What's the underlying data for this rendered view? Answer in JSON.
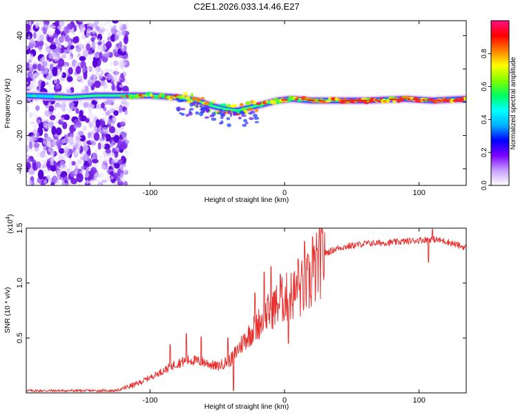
{
  "title": "C2E1.2026.033.14.46.E27",
  "colors": {
    "snr_line": "#e8302e",
    "frame": "#000000",
    "background": "#ffffff",
    "scatter_violet": "#7b2bea",
    "ridge_core": "#ff1f1f"
  },
  "chart_data": [
    {
      "type": "heatmap",
      "name": "spectrogram",
      "xlabel": "Height of straight line (km)",
      "ylabel": "Frequency (Hz)",
      "xlim": [
        -192,
        135
      ],
      "ylim": [
        -50,
        49
      ],
      "x_ticks": [
        {
          "v": -100,
          "label": "-100"
        },
        {
          "v": 0,
          "label": "0"
        },
        {
          "v": 100,
          "label": "100"
        }
      ],
      "y_ticks": [
        {
          "v": 40,
          "label": "40"
        },
        {
          "v": 20,
          "label": "20"
        },
        {
          "v": 0,
          "label": "0"
        },
        {
          "v": -20,
          "label": "-20"
        },
        {
          "v": -40,
          "label": "-40"
        }
      ],
      "noise_region_x": [
        -192,
        -117
      ],
      "ridge": [
        {
          "x": -192,
          "f": 4
        },
        {
          "x": -160,
          "f": 3
        },
        {
          "x": -140,
          "f": 4
        },
        {
          "x": -120,
          "f": 4
        },
        {
          "x": -100,
          "f": 4
        },
        {
          "x": -80,
          "f": 3
        },
        {
          "x": -65,
          "f": 1
        },
        {
          "x": -55,
          "f": -2
        },
        {
          "x": -45,
          "f": -4
        },
        {
          "x": -35,
          "f": -5
        },
        {
          "x": -25,
          "f": -3
        },
        {
          "x": -15,
          "f": -1
        },
        {
          "x": -5,
          "f": 1
        },
        {
          "x": 5,
          "f": 2
        },
        {
          "x": 20,
          "f": 1
        },
        {
          "x": 40,
          "f": 1
        },
        {
          "x": 60,
          "f": 1
        },
        {
          "x": 90,
          "f": 2
        },
        {
          "x": 110,
          "f": 1
        },
        {
          "x": 135,
          "f": 2
        }
      ],
      "colorbar": {
        "label": "Normalized spectral amplitude",
        "range": [
          0,
          1
        ],
        "ticks": [
          {
            "v": 0.0,
            "label": "0.0"
          },
          {
            "v": 0.2,
            "label": "0.2"
          },
          {
            "v": 0.4,
            "label": "0.4"
          },
          {
            "v": 0.6,
            "label": "0.6"
          },
          {
            "v": 0.8,
            "label": "0.8"
          }
        ],
        "stops": [
          "#ffffff",
          "#c8a0ff",
          "#7a00ff",
          "#0000ff",
          "#00b0ff",
          "#00ffff",
          "#00ff60",
          "#80ff00",
          "#ffff00",
          "#ff8000",
          "#ff0000",
          "#ff1080"
        ]
      }
    },
    {
      "type": "line",
      "name": "snr",
      "xlabel": "Height of straight line (km)",
      "ylabel": "SNR (10 * v/v)",
      "multiplier_label": "(x10",
      "multiplier_exp": "4",
      "multiplier_close": ")",
      "xlim": [
        -192,
        135
      ],
      "ylim": [
        0,
        1.5
      ],
      "x_ticks": [
        {
          "v": -100,
          "label": "-100"
        },
        {
          "v": 0,
          "label": "0"
        },
        {
          "v": 100,
          "label": "100"
        }
      ],
      "y_ticks": [
        {
          "v": 0.5,
          "label": "0.5"
        },
        {
          "v": 1.0,
          "label": "1.0"
        },
        {
          "v": 1.5,
          "label": "1.5"
        }
      ],
      "series": [
        {
          "name": "SNR",
          "envelope": [
            {
              "x": -192,
              "y": 0.02
            },
            {
              "x": -125,
              "y": 0.02
            },
            {
              "x": -110,
              "y": 0.08
            },
            {
              "x": -95,
              "y": 0.17
            },
            {
              "x": -80,
              "y": 0.27
            },
            {
              "x": -70,
              "y": 0.3
            },
            {
              "x": -60,
              "y": 0.28
            },
            {
              "x": -50,
              "y": 0.24
            },
            {
              "x": -40,
              "y": 0.3
            },
            {
              "x": -30,
              "y": 0.48
            },
            {
              "x": -20,
              "y": 0.62
            },
            {
              "x": -10,
              "y": 0.76
            },
            {
              "x": 0,
              "y": 0.86
            },
            {
              "x": 10,
              "y": 0.92
            },
            {
              "x": 20,
              "y": 1.02
            },
            {
              "x": 25,
              "y": 1.18
            },
            {
              "x": 30,
              "y": 1.27
            },
            {
              "x": 40,
              "y": 1.32
            },
            {
              "x": 60,
              "y": 1.36
            },
            {
              "x": 80,
              "y": 1.37
            },
            {
              "x": 100,
              "y": 1.39
            },
            {
              "x": 110,
              "y": 1.4
            },
            {
              "x": 120,
              "y": 1.38
            },
            {
              "x": 135,
              "y": 1.32
            }
          ],
          "spikes": [
            {
              "x": -85,
              "y": 0.44
            },
            {
              "x": -73,
              "y": 0.54
            },
            {
              "x": -62,
              "y": 0.51
            },
            {
              "x": -42,
              "y": 0.5
            },
            {
              "x": -22,
              "y": 0.91
            },
            {
              "x": -15,
              "y": 1.1
            },
            {
              "x": -10,
              "y": 1.15
            },
            {
              "x": -3,
              "y": 1.08
            },
            {
              "x": 10,
              "y": 1.22
            },
            {
              "x": 15,
              "y": 1.38
            },
            {
              "x": 21,
              "y": 1.42
            },
            {
              "x": 110,
              "y": 1.49
            }
          ],
          "dips": [
            {
              "x": -38,
              "y": 0.02
            },
            {
              "x": 3,
              "y": 0.45
            },
            {
              "x": 107,
              "y": 1.19
            }
          ]
        }
      ]
    }
  ]
}
